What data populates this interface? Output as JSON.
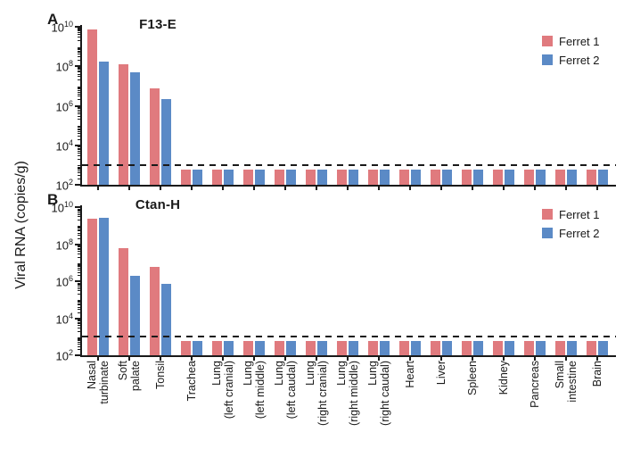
{
  "figure": {
    "ylabel": "Viral RNA (copies/g)",
    "colors": {
      "ferret1": "#E07A7E",
      "ferret2": "#5B8AC6",
      "axis": "#1a1a1a",
      "dashed_line": "#1a1a1a",
      "background": "#ffffff"
    }
  },
  "chart_data": [
    {
      "type": "bar",
      "panel_label": "A",
      "title": "F13-E",
      "yscale": "log",
      "ylim": [
        100,
        10000000000
      ],
      "ytick_exponents": [
        2,
        4,
        6,
        8,
        10
      ],
      "grid": false,
      "legend_position": "top-right",
      "dashed_line_value": 1000,
      "legend": [
        "Ferret 1",
        "Ferret 2"
      ],
      "categories": [
        [
          "Nasal",
          "turbinate"
        ],
        [
          "Soft",
          "palate"
        ],
        [
          "Tonsil"
        ],
        [
          "Trachea"
        ],
        [
          "Lung",
          "(left cranial)"
        ],
        [
          "Lung",
          "(left middle)"
        ],
        [
          "Lung",
          "(left caudal)"
        ],
        [
          "Lung",
          "(right cranial)"
        ],
        [
          "Lung",
          "(right middle)"
        ],
        [
          "Lung",
          "(right caudal)"
        ],
        [
          "Heart"
        ],
        [
          "Liver"
        ],
        [
          "Spleen"
        ],
        [
          "Kidney"
        ],
        [
          "Pancreas"
        ],
        [
          "Small",
          "intestine"
        ],
        [
          "Brain"
        ]
      ],
      "series": [
        {
          "name": "Ferret 1",
          "values": [
            7000000000,
            120000000,
            8000000,
            600,
            600,
            600,
            600,
            600,
            600,
            600,
            600,
            600,
            600,
            600,
            600,
            600,
            600
          ]
        },
        {
          "name": "Ferret 2",
          "values": [
            180000000,
            50000000,
            2200000,
            600,
            600,
            600,
            600,
            600,
            600,
            600,
            600,
            600,
            600,
            600,
            600,
            600,
            600
          ]
        }
      ]
    },
    {
      "type": "bar",
      "panel_label": "B",
      "title": "Ctan-H",
      "yscale": "log",
      "ylim": [
        100,
        10000000000
      ],
      "ytick_exponents": [
        2,
        4,
        6,
        8,
        10
      ],
      "grid": false,
      "legend_position": "top-right",
      "dashed_line_value": 1000,
      "legend": [
        "Ferret 1",
        "Ferret 2"
      ],
      "categories": [
        [
          "Nasal",
          "turbinate"
        ],
        [
          "Soft",
          "palate"
        ],
        [
          "Tonsil"
        ],
        [
          "Trachea"
        ],
        [
          "Lung",
          "(left cranial)"
        ],
        [
          "Lung",
          "(left middle)"
        ],
        [
          "Lung",
          "(left caudal)"
        ],
        [
          "Lung",
          "(right cranial)"
        ],
        [
          "Lung",
          "(right middle)"
        ],
        [
          "Lung",
          "(right caudal)"
        ],
        [
          "Heart"
        ],
        [
          "Liver"
        ],
        [
          "Spleen"
        ],
        [
          "Kidney"
        ],
        [
          "Pancreas"
        ],
        [
          "Small",
          "intestine"
        ],
        [
          "Brain"
        ]
      ],
      "series": [
        {
          "name": "Ferret 1",
          "values": [
            2300000000,
            60000000,
            6000000,
            600,
            600,
            600,
            600,
            600,
            600,
            600,
            600,
            600,
            600,
            600,
            600,
            600,
            600
          ]
        },
        {
          "name": "Ferret 2",
          "values": [
            2700000000,
            2000000,
            700000,
            600,
            600,
            600,
            600,
            600,
            600,
            600,
            600,
            600,
            600,
            600,
            600,
            600,
            600
          ]
        }
      ]
    }
  ]
}
